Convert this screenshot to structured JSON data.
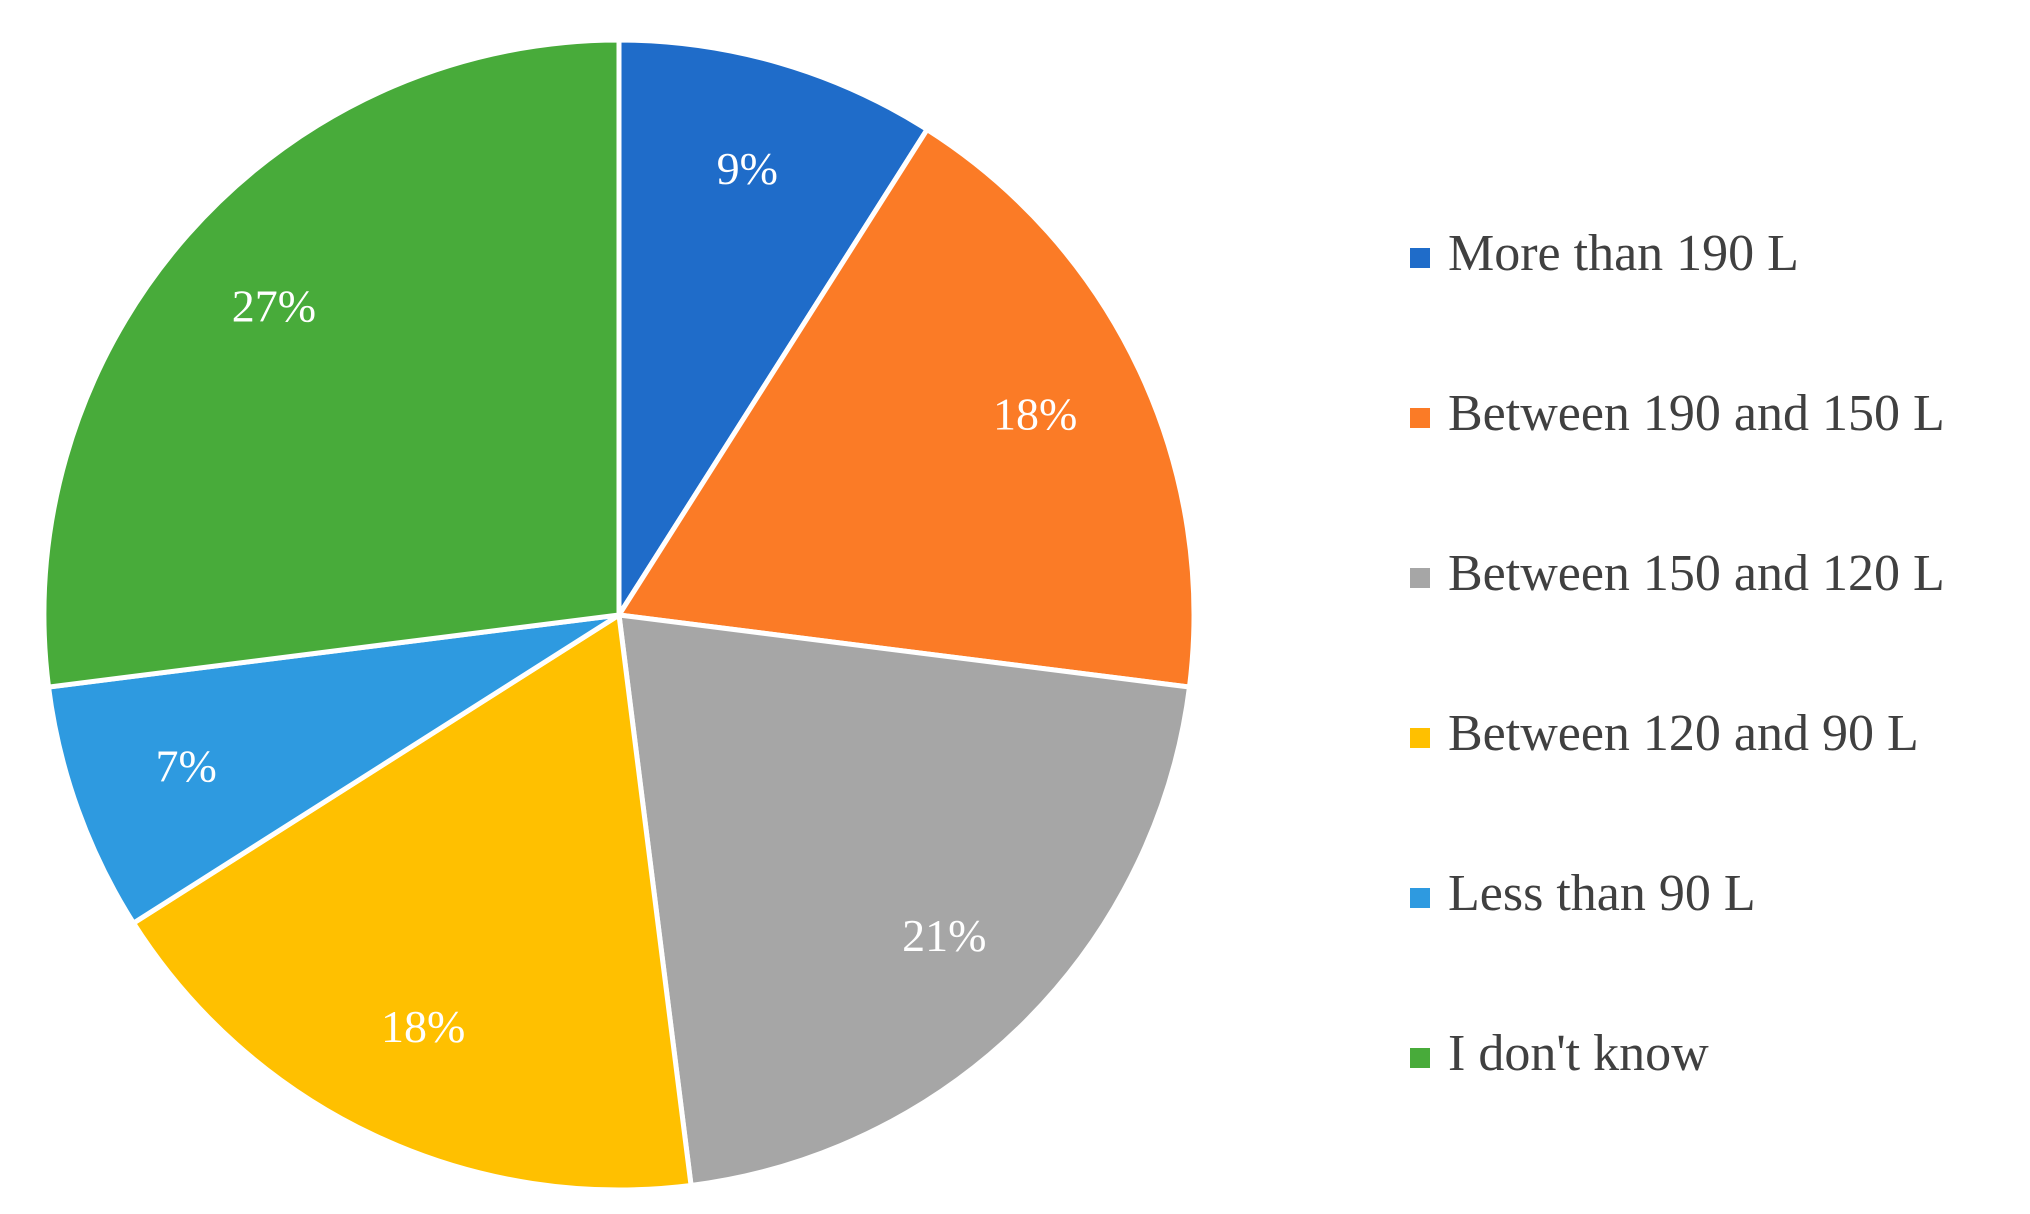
{
  "chart_data": {
    "type": "pie",
    "categories": [
      "More than 190 L",
      "Between 190 and 150 L",
      "Between 150 and 120 L",
      "Between 120 and 90 L",
      "Less than 90 L",
      "I don't know"
    ],
    "values": [
      9,
      18,
      21,
      18,
      7,
      27
    ],
    "value_labels": [
      "9%",
      "18%",
      "21%",
      "18%",
      "7%",
      "27%"
    ],
    "colors": [
      "#1f6cc9",
      "#fb7b26",
      "#a6a6a6",
      "#ffc000",
      "#2e9ae0",
      "#48ab3a"
    ],
    "legend": "right"
  }
}
